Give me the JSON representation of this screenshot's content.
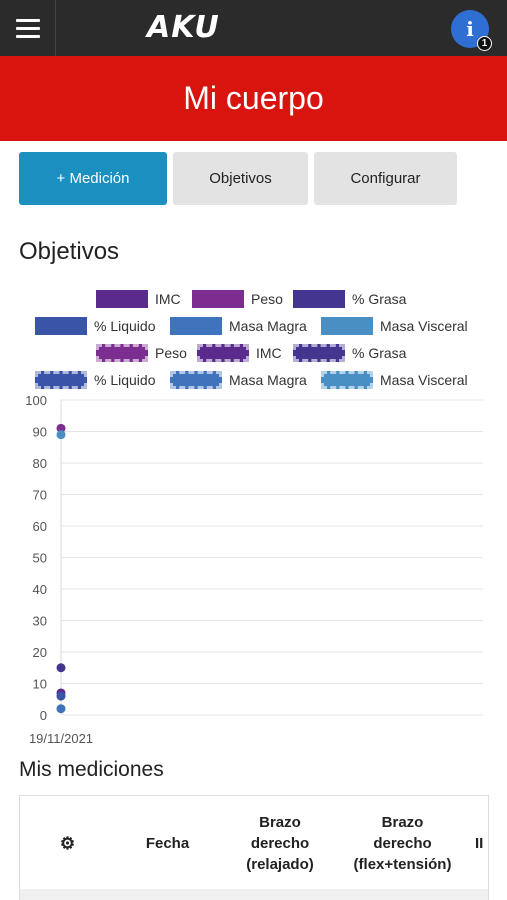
{
  "header": {
    "logo": "AKU",
    "info_icon": "i",
    "notification_count": "1"
  },
  "hero": {
    "title": "Mi cuerpo"
  },
  "actions": {
    "add_label": "+ Medición",
    "objectives_label": "Objetivos",
    "configure_label": "Configurar"
  },
  "objectives_section": {
    "title": "Objetivos"
  },
  "legend": [
    {
      "label": "IMC",
      "color": "#5a2a8c",
      "dashed": false
    },
    {
      "label": "Peso",
      "color": "#7b2d90",
      "dashed": false
    },
    {
      "label": "% Grasa",
      "color": "#443590",
      "dashed": false
    },
    {
      "label": "% Liquido",
      "color": "#3a55a8",
      "dashed": false
    },
    {
      "label": "Masa Magra",
      "color": "#3f73bb",
      "dashed": false
    },
    {
      "label": "Masa Visceral",
      "color": "#4a8fc4",
      "dashed": false
    },
    {
      "label": "Peso",
      "color": "#7b2d90",
      "dashed": true
    },
    {
      "label": "IMC",
      "color": "#5a2a8c",
      "dashed": true
    },
    {
      "label": "% Grasa",
      "color": "#443590",
      "dashed": true
    },
    {
      "label": "% Liquido",
      "color": "#3a55a8",
      "dashed": true
    },
    {
      "label": "Masa Magra",
      "color": "#3f73bb",
      "dashed": true
    },
    {
      "label": "Masa Visceral",
      "color": "#4a8fc4",
      "dashed": true
    }
  ],
  "chart_data": {
    "type": "scatter",
    "x_labels": [
      "19/11/2021"
    ],
    "y_ticks": [
      100,
      90,
      80,
      70,
      60,
      50,
      40,
      30,
      20,
      10,
      0
    ],
    "ylim": [
      0,
      100
    ],
    "grid": true,
    "points": [
      {
        "series": "Peso",
        "value": 91,
        "color": "#7b2d90"
      },
      {
        "series": "Masa Visceral",
        "value": 89,
        "color": "#4a8fc4"
      },
      {
        "series": "% Grasa",
        "value": 15,
        "color": "#443590"
      },
      {
        "series": "IMC",
        "value": 7,
        "color": "#5a2a8c"
      },
      {
        "series": "% Liquido",
        "value": 6,
        "color": "#3a55a8"
      },
      {
        "series": "Masa Magra",
        "value": 2,
        "color": "#3f73bb"
      }
    ]
  },
  "measurements_section": {
    "title": "Mis mediciones"
  },
  "table": {
    "settings_icon": "⚙",
    "headers": [
      "Fecha",
      "Brazo\nderecho\n(relajado)",
      "Brazo\nderecho\n(flex+tensión)",
      "II"
    ]
  }
}
